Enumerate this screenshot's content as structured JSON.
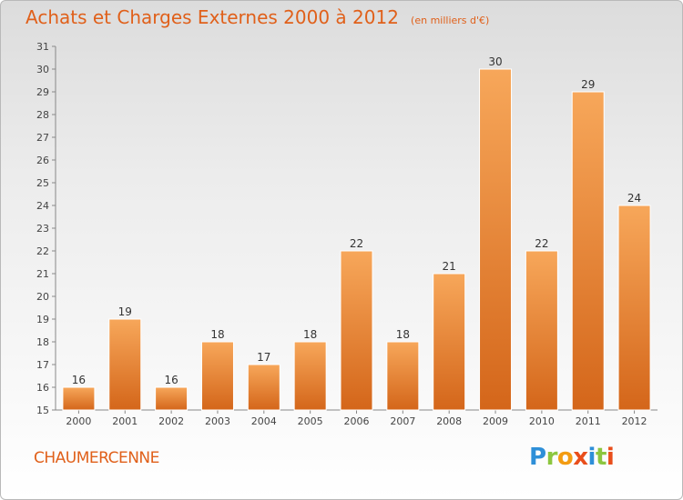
{
  "header": {
    "title": "Achats et Charges Externes 2000 à 2012",
    "unit": "(en milliers d'€)"
  },
  "footer": {
    "commune": "CHAUMERCENNE",
    "logo_text": "Proxiti"
  },
  "colors": {
    "accent": "#e0601a",
    "bar_top": "#f7a75a",
    "bar_bottom": "#d4661a"
  },
  "chart_data": {
    "type": "bar",
    "categories": [
      "2000",
      "2001",
      "2002",
      "2003",
      "2004",
      "2005",
      "2006",
      "2007",
      "2008",
      "2009",
      "2010",
      "2011",
      "2012"
    ],
    "values": [
      16,
      19,
      16,
      18,
      17,
      18,
      22,
      18,
      21,
      30,
      22,
      29,
      24
    ],
    "title": "Achats et Charges Externes 2000 à 2012",
    "subtitle": "(en milliers d'€)",
    "ylim": [
      15,
      31
    ],
    "yticks": [
      15,
      16,
      17,
      18,
      19,
      20,
      21,
      22,
      23,
      24,
      25,
      26,
      27,
      28,
      29,
      30,
      31
    ],
    "grid": false,
    "legend": "none"
  }
}
